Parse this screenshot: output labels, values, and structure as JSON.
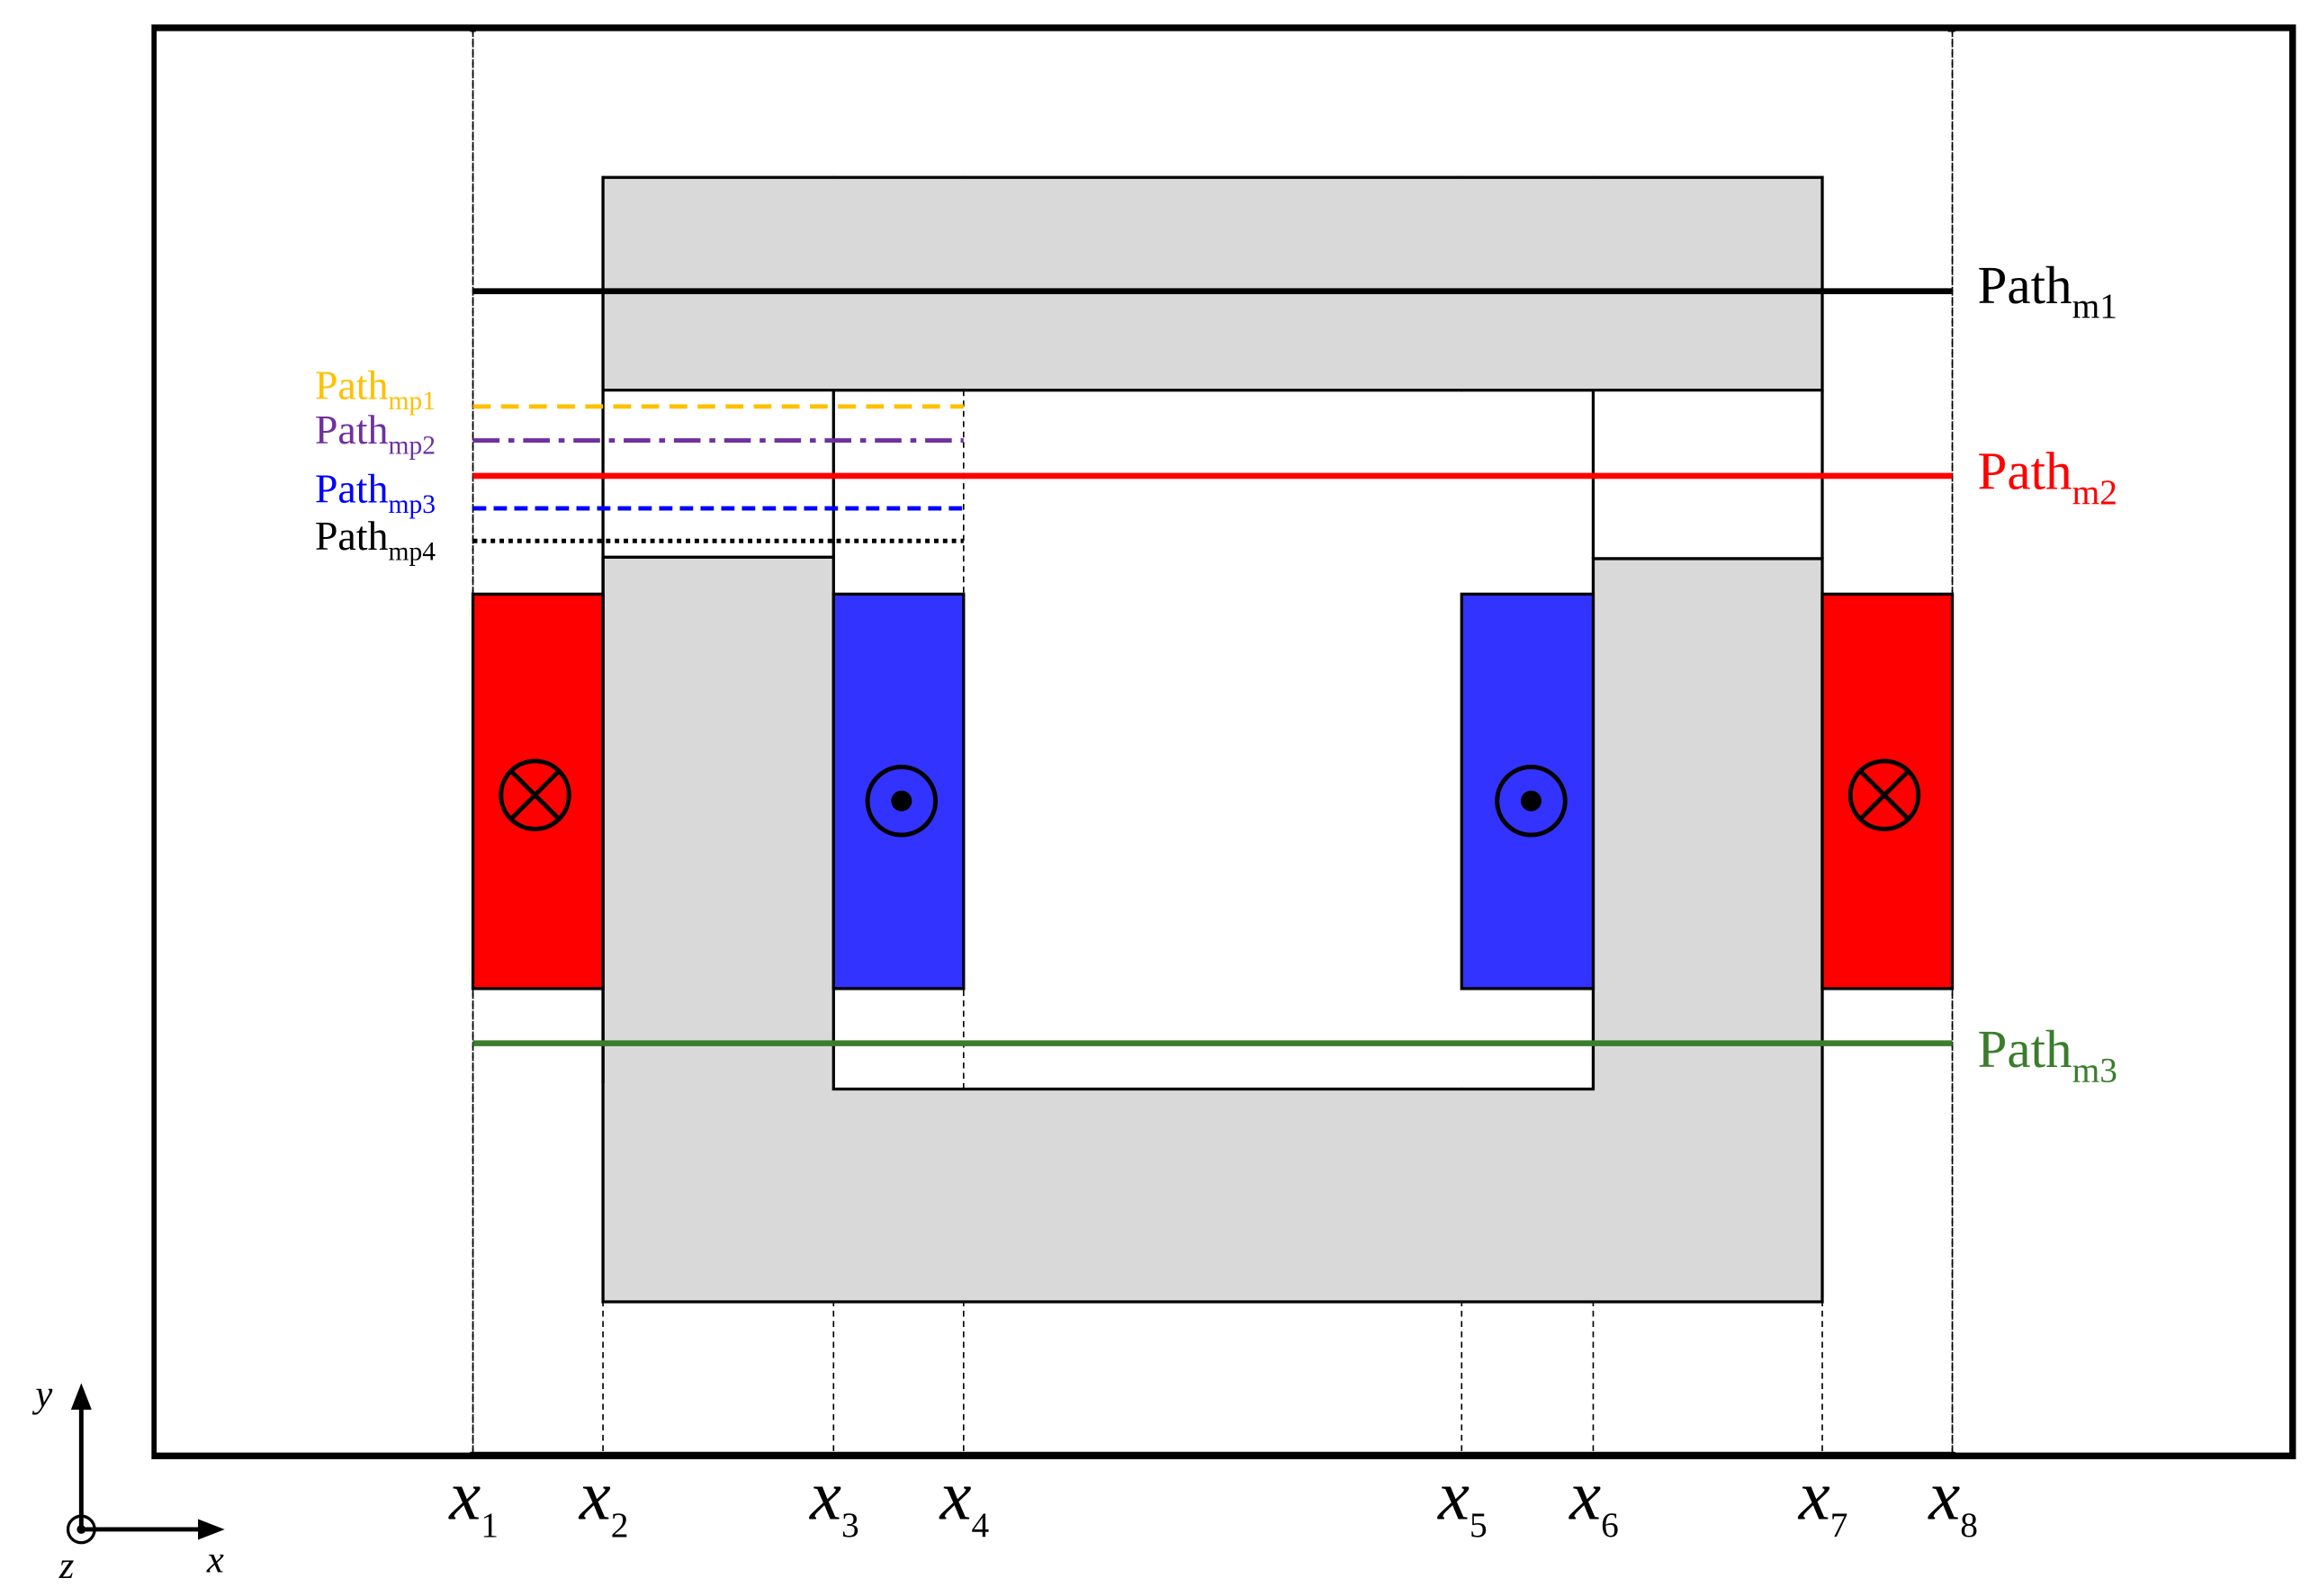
{
  "paths": [
    {
      "base": "Path",
      "sub": "m1"
    },
    {
      "base": "Path",
      "sub": "m2"
    },
    {
      "base": "Path",
      "sub": "m3"
    },
    {
      "base": "Path",
      "sub": "mp1"
    },
    {
      "base": "Path",
      "sub": "mp2"
    },
    {
      "base": "Path",
      "sub": "mp3"
    },
    {
      "base": "Path",
      "sub": "mp4"
    }
  ],
  "x_labels": [
    {
      "base": "x",
      "sub": "1"
    },
    {
      "base": "x",
      "sub": "2"
    },
    {
      "base": "x",
      "sub": "3"
    },
    {
      "base": "x",
      "sub": "4"
    },
    {
      "base": "x",
      "sub": "5"
    },
    {
      "base": "x",
      "sub": "6"
    },
    {
      "base": "x",
      "sub": "7"
    },
    {
      "base": "x",
      "sub": "8"
    }
  ],
  "axes": {
    "x": "x",
    "y": "y",
    "z": "z"
  }
}
